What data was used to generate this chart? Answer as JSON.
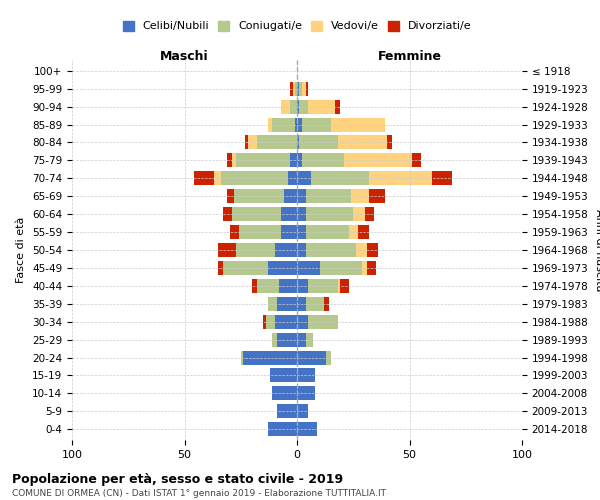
{
  "age_groups": [
    "0-4",
    "5-9",
    "10-14",
    "15-19",
    "20-24",
    "25-29",
    "30-34",
    "35-39",
    "40-44",
    "45-49",
    "50-54",
    "55-59",
    "60-64",
    "65-69",
    "70-74",
    "75-79",
    "80-84",
    "85-89",
    "90-94",
    "95-99",
    "100+"
  ],
  "birth_years": [
    "2014-2018",
    "2009-2013",
    "2004-2008",
    "1999-2003",
    "1994-1998",
    "1989-1993",
    "1984-1988",
    "1979-1983",
    "1974-1978",
    "1969-1973",
    "1964-1968",
    "1959-1963",
    "1954-1958",
    "1949-1953",
    "1944-1948",
    "1939-1943",
    "1934-1938",
    "1929-1933",
    "1924-1928",
    "1919-1923",
    "≤ 1918"
  ],
  "colors": {
    "celibi": "#4472c4",
    "coniugati": "#b5c98e",
    "vedovi": "#ffd280",
    "divorziati": "#cc2200"
  },
  "males": {
    "celibi": [
      13,
      9,
      11,
      12,
      24,
      9,
      10,
      9,
      8,
      13,
      10,
      7,
      7,
      6,
      4,
      3,
      0,
      1,
      0,
      0,
      0
    ],
    "coniugati": [
      0,
      0,
      0,
      0,
      1,
      2,
      4,
      4,
      10,
      20,
      17,
      19,
      22,
      22,
      30,
      24,
      18,
      10,
      3,
      1,
      0
    ],
    "vedovi": [
      0,
      0,
      0,
      0,
      0,
      0,
      0,
      0,
      0,
      0,
      0,
      0,
      0,
      0,
      3,
      2,
      4,
      2,
      4,
      1,
      0
    ],
    "divorziati": [
      0,
      0,
      0,
      0,
      0,
      0,
      1,
      0,
      2,
      2,
      8,
      4,
      4,
      3,
      9,
      2,
      1,
      0,
      0,
      1,
      0
    ]
  },
  "females": {
    "celibi": [
      9,
      5,
      8,
      8,
      13,
      4,
      5,
      4,
      5,
      10,
      4,
      4,
      4,
      4,
      6,
      2,
      1,
      2,
      1,
      1,
      0
    ],
    "coniugati": [
      0,
      0,
      0,
      0,
      2,
      3,
      13,
      8,
      13,
      19,
      22,
      19,
      21,
      20,
      26,
      19,
      17,
      13,
      4,
      1,
      0
    ],
    "vedovi": [
      0,
      0,
      0,
      0,
      0,
      0,
      0,
      0,
      1,
      2,
      5,
      4,
      5,
      8,
      28,
      30,
      22,
      24,
      12,
      2,
      0
    ],
    "divorziati": [
      0,
      0,
      0,
      0,
      0,
      0,
      0,
      2,
      4,
      4,
      5,
      5,
      4,
      7,
      9,
      4,
      2,
      0,
      2,
      1,
      0
    ]
  },
  "title": "Popolazione per età, sesso e stato civile - 2019",
  "subtitle": "COMUNE DI ORMEA (CN) - Dati ISTAT 1° gennaio 2019 - Elaborazione TUTTITALIA.IT",
  "xlabel_left": "Maschi",
  "xlabel_right": "Femmine",
  "ylabel_left": "Fasce di età",
  "ylabel_right": "Anni di nascita",
  "xlim": 100,
  "legend_labels": [
    "Celibi/Nubili",
    "Coniugati/e",
    "Vedovi/e",
    "Divorziati/e"
  ],
  "bg_color": "#ffffff",
  "grid_color": "#cccccc"
}
